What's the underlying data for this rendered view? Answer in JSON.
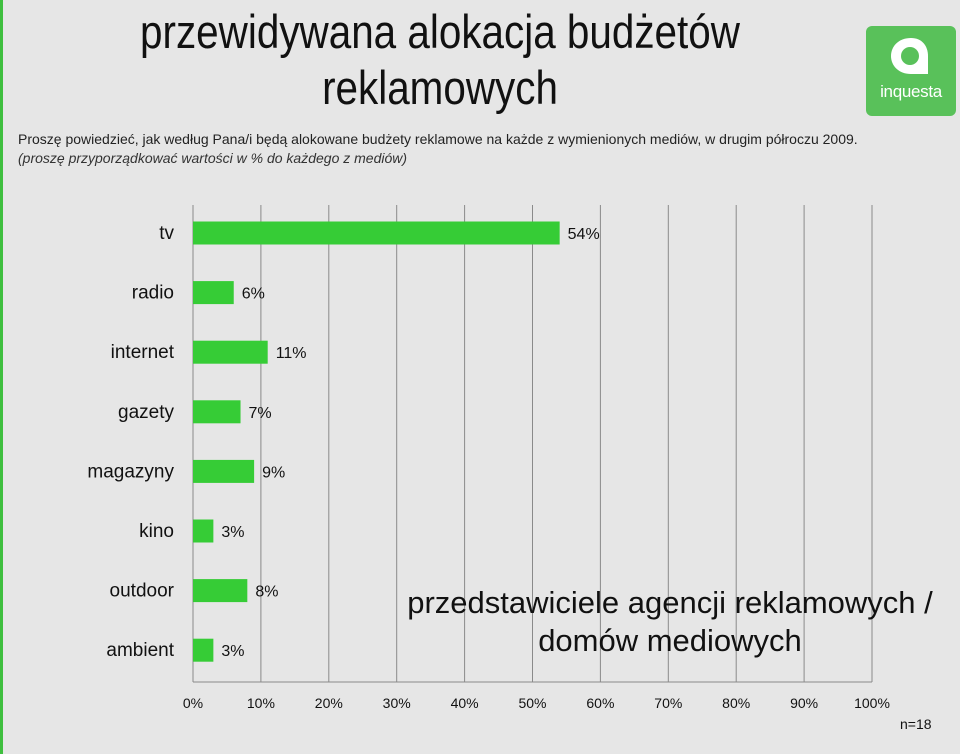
{
  "header": {
    "title": "przewidywana alokacja budżetów reklamowych",
    "question": "Proszę powiedzieć, jak według Pana/i będą alokowane budżety reklamowe na każde z wymienionych mediów, w drugim półroczu 2009.",
    "instruction": "(proszę przyporządkować wartości w % do każdego z mediów)"
  },
  "logo": {
    "text": "inquesta",
    "icon": "speech-bubble-icon",
    "color": "#59c15a"
  },
  "chart_data": {
    "type": "bar",
    "orientation": "horizontal",
    "categories": [
      "tv",
      "radio",
      "internet",
      "gazety",
      "magazyny",
      "kino",
      "outdoor",
      "ambient"
    ],
    "values": [
      54,
      6,
      11,
      7,
      9,
      3,
      8,
      3
    ],
    "value_labels": [
      "54%",
      "6%",
      "11%",
      "7%",
      "9%",
      "3%",
      "8%",
      "3%"
    ],
    "xlim": [
      0,
      100
    ],
    "x_ticks": [
      "0%",
      "10%",
      "20%",
      "30%",
      "40%",
      "50%",
      "60%",
      "70%",
      "80%",
      "90%",
      "100%"
    ],
    "grid": true,
    "bar_color": "#36cc36",
    "annotation": "przedstawiciele agencji reklamowych / domów mediowych",
    "sample_note": "n=18"
  }
}
